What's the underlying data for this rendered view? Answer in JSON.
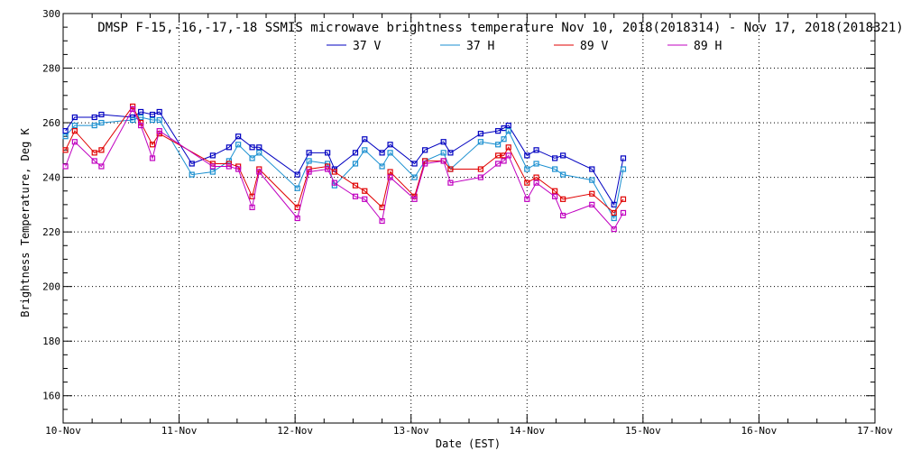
{
  "chart_data": {
    "type": "line",
    "title": "DMSP F-15,-16,-17,-18 SSMIS microwave brightness temperature Nov 10, 2018(2018314) - Nov 17, 2018(2018321)",
    "xlabel": "Date (EST)",
    "ylabel": "Brightness Temperature, Deg K",
    "xlim": [
      0,
      7
    ],
    "ylim": [
      150,
      300
    ],
    "yticks": [
      160,
      180,
      200,
      220,
      240,
      260,
      280,
      300
    ],
    "xticks": [
      {
        "value": 0,
        "label": "10-Nov"
      },
      {
        "value": 1,
        "label": "11-Nov"
      },
      {
        "value": 2,
        "label": "12-Nov"
      },
      {
        "value": 3,
        "label": "13-Nov"
      },
      {
        "value": 4,
        "label": "14-Nov"
      },
      {
        "value": 5,
        "label": "15-Nov"
      },
      {
        "value": 6,
        "label": "16-Nov"
      },
      {
        "value": 7,
        "label": "17-Nov"
      }
    ],
    "grid": true,
    "series": [
      {
        "name": "37 V",
        "color": "#0000c0",
        "x": [
          0.02,
          0.1,
          0.27,
          0.33,
          0.6,
          0.67,
          0.77,
          0.83,
          1.11,
          1.29,
          1.43,
          1.51,
          1.63,
          1.69,
          2.02,
          2.12,
          2.28,
          2.34,
          2.52,
          2.6,
          2.75,
          2.82,
          3.03,
          3.12,
          3.28,
          3.34,
          3.6,
          3.75,
          3.8,
          3.84,
          4.0,
          4.08,
          4.24,
          4.31,
          4.56,
          4.75,
          4.83
        ],
        "y": [
          257,
          262,
          262,
          263,
          262,
          264,
          263,
          264,
          245,
          248,
          251,
          255,
          251,
          251,
          241,
          249,
          249,
          243,
          249,
          254,
          249,
          252,
          245,
          250,
          253,
          249,
          256,
          257,
          258,
          259,
          248,
          250,
          247,
          248,
          243,
          230,
          247
        ]
      },
      {
        "name": "37 H",
        "color": "#1a8fd0",
        "x": [
          0.02,
          0.1,
          0.27,
          0.33,
          0.6,
          0.67,
          0.77,
          0.83,
          1.11,
          1.29,
          1.43,
          1.51,
          1.63,
          1.69,
          2.02,
          2.12,
          2.28,
          2.34,
          2.52,
          2.6,
          2.75,
          2.82,
          3.03,
          3.12,
          3.28,
          3.34,
          3.6,
          3.75,
          3.8,
          3.84,
          4.0,
          4.08,
          4.24,
          4.31,
          4.56,
          4.75,
          4.83
        ],
        "y": [
          255,
          259,
          259,
          260,
          261,
          262,
          261,
          261,
          241,
          242,
          246,
          252,
          247,
          249,
          236,
          246,
          245,
          237,
          245,
          250,
          244,
          249,
          240,
          246,
          249,
          243,
          253,
          252,
          254,
          257,
          243,
          245,
          243,
          241,
          239,
          225,
          243
        ]
      },
      {
        "name": "89 V",
        "color": "#e00000",
        "x": [
          0.02,
          0.1,
          0.27,
          0.33,
          0.6,
          0.67,
          0.77,
          0.83,
          1.29,
          1.43,
          1.51,
          1.63,
          1.69,
          2.02,
          2.12,
          2.28,
          2.34,
          2.52,
          2.6,
          2.75,
          2.82,
          3.03,
          3.12,
          3.28,
          3.34,
          3.6,
          3.75,
          3.8,
          3.84,
          4.0,
          4.08,
          4.24,
          4.31,
          4.56,
          4.75,
          4.83
        ],
        "y": [
          250,
          257,
          249,
          250,
          266,
          260,
          252,
          256,
          245,
          245,
          244,
          233,
          243,
          229,
          243,
          244,
          242,
          237,
          235,
          229,
          242,
          233,
          246,
          246,
          243,
          243,
          248,
          248,
          251,
          238,
          240,
          235,
          232,
          234,
          227,
          232
        ]
      },
      {
        "name": "89 H",
        "color": "#c000c0",
        "x": [
          0.02,
          0.1,
          0.27,
          0.33,
          0.6,
          0.67,
          0.77,
          0.83,
          1.29,
          1.43,
          1.51,
          1.63,
          1.69,
          2.02,
          2.12,
          2.28,
          2.34,
          2.52,
          2.6,
          2.75,
          2.82,
          3.03,
          3.12,
          3.28,
          3.34,
          3.6,
          3.75,
          3.8,
          3.84,
          4.0,
          4.08,
          4.24,
          4.31,
          4.56,
          4.75,
          4.83
        ],
        "y": [
          244,
          253,
          246,
          244,
          265,
          259,
          247,
          257,
          244,
          244,
          243,
          229,
          242,
          225,
          242,
          243,
          238,
          233,
          232,
          224,
          240,
          232,
          245,
          246,
          238,
          240,
          245,
          246,
          248,
          232,
          238,
          233,
          226,
          230,
          221,
          227
        ]
      }
    ]
  }
}
